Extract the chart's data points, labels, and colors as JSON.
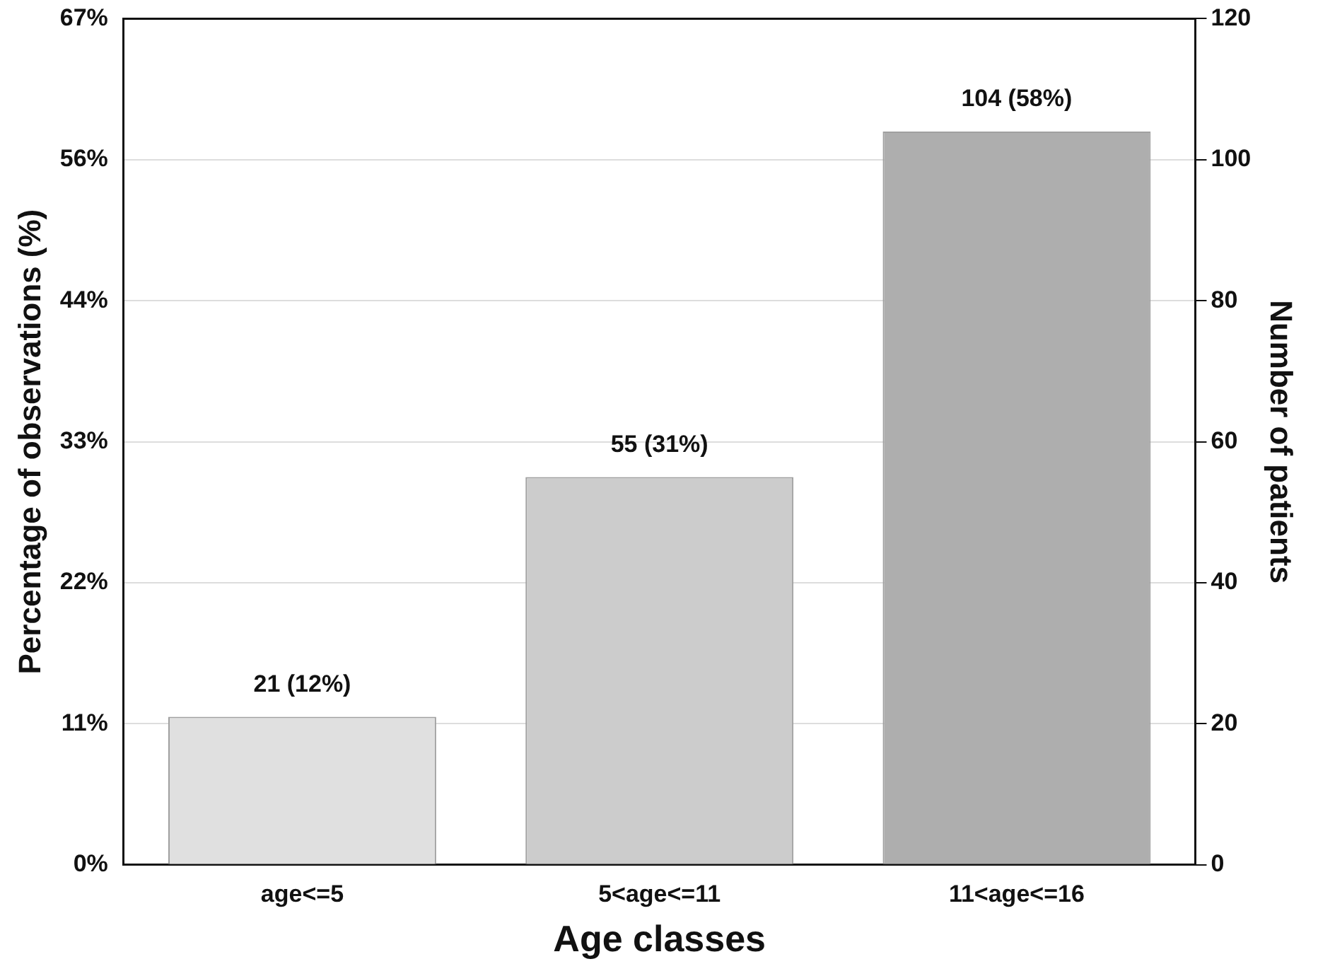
{
  "chart_data": {
    "type": "bar",
    "xlabel": "Age classes",
    "ylabel": "Percentage of observations (%)",
    "y2label": "Number of patients",
    "categories": [
      "age<=5",
      "5<age<=11",
      "11<age<=16"
    ],
    "series": [
      {
        "axis": "y2",
        "colors": [
          "#e0e0e0",
          "#cccccc",
          "#aeaeae"
        ],
        "values": [
          21,
          55,
          104
        ],
        "value_labels": [
          "21 (12%)",
          "55 (31%)",
          "104 (58%)"
        ]
      }
    ],
    "ylim": [
      0,
      66.67
    ],
    "yticks": [
      {
        "value": 0,
        "label": "0%"
      },
      {
        "value": 11.11,
        "label": "11%"
      },
      {
        "value": 22.22,
        "label": "22%"
      },
      {
        "value": 33.33,
        "label": "33%"
      },
      {
        "value": 44.44,
        "label": "44%"
      },
      {
        "value": 55.56,
        "label": "56%"
      },
      {
        "value": 66.67,
        "label": "67%"
      }
    ],
    "y2lim": [
      0,
      120
    ],
    "y2ticks": [
      0,
      20,
      40,
      60,
      80,
      100,
      120
    ],
    "grid": "y",
    "legend": false
  }
}
